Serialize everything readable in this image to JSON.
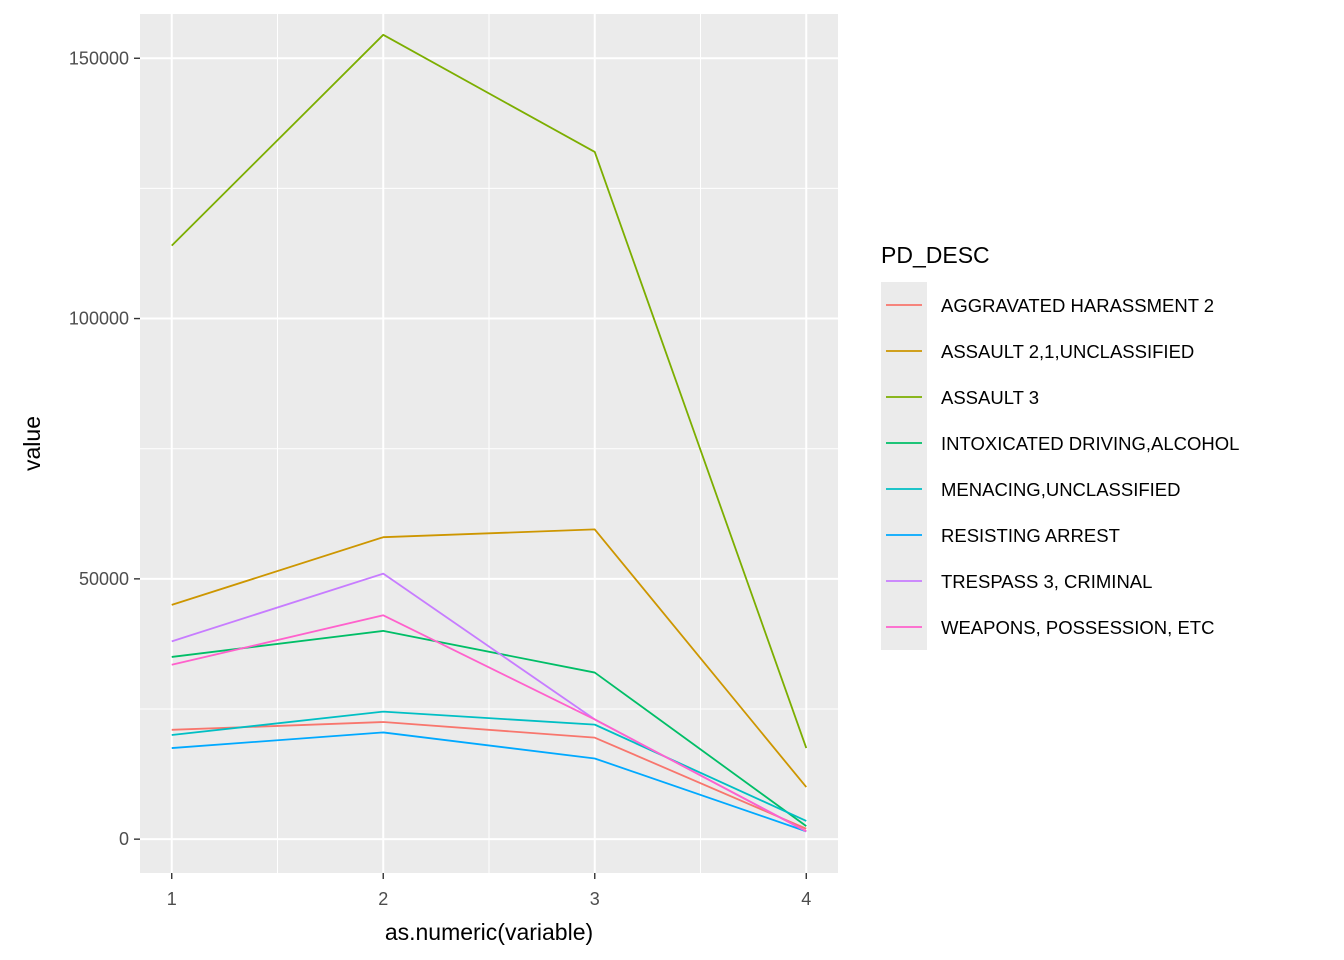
{
  "chart_data": {
    "type": "line",
    "xlabel": "as.numeric(variable)",
    "ylabel": "value",
    "x": [
      1,
      2,
      3,
      4
    ],
    "xlim": [
      0.85,
      4.15
    ],
    "ylim": [
      -6500,
      158500
    ],
    "x_ticks": [
      1,
      2,
      3,
      4
    ],
    "y_ticks": [
      0,
      50000,
      100000,
      150000
    ],
    "y_minor_ticks": [
      25000,
      75000,
      125000
    ],
    "x_minor_ticks": [
      1.5,
      2.5,
      3.5
    ],
    "grid": true,
    "panel_background": "#ebebeb",
    "legend": {
      "title": "PD_DESC",
      "placement": "right"
    },
    "series": [
      {
        "name": "AGGRAVATED HARASSMENT 2",
        "color": "#F8766D",
        "values": [
          21000,
          22500,
          19500,
          2000
        ]
      },
      {
        "name": "ASSAULT 2,1,UNCLASSIFIED",
        "color": "#CD9600",
        "values": [
          45000,
          58000,
          59500,
          10000
        ]
      },
      {
        "name": "ASSAULT 3",
        "color": "#7CAE00",
        "values": [
          114000,
          154500,
          132000,
          17500
        ]
      },
      {
        "name": "INTOXICATED DRIVING,ALCOHOL",
        "color": "#00BE67",
        "values": [
          35000,
          40000,
          32000,
          2500
        ]
      },
      {
        "name": "MENACING,UNCLASSIFIED",
        "color": "#00BFC4",
        "values": [
          20000,
          24500,
          22000,
          3500
        ]
      },
      {
        "name": "RESISTING ARREST",
        "color": "#00A9FF",
        "values": [
          17500,
          20500,
          15500,
          1500
        ]
      },
      {
        "name": "TRESPASS 3, CRIMINAL",
        "color": "#C77CFF",
        "values": [
          38000,
          51000,
          23000,
          1500
        ]
      },
      {
        "name": "WEAPONS, POSSESSION, ETC",
        "color": "#FF61CC",
        "values": [
          33500,
          43000,
          23000,
          1500
        ]
      }
    ]
  }
}
